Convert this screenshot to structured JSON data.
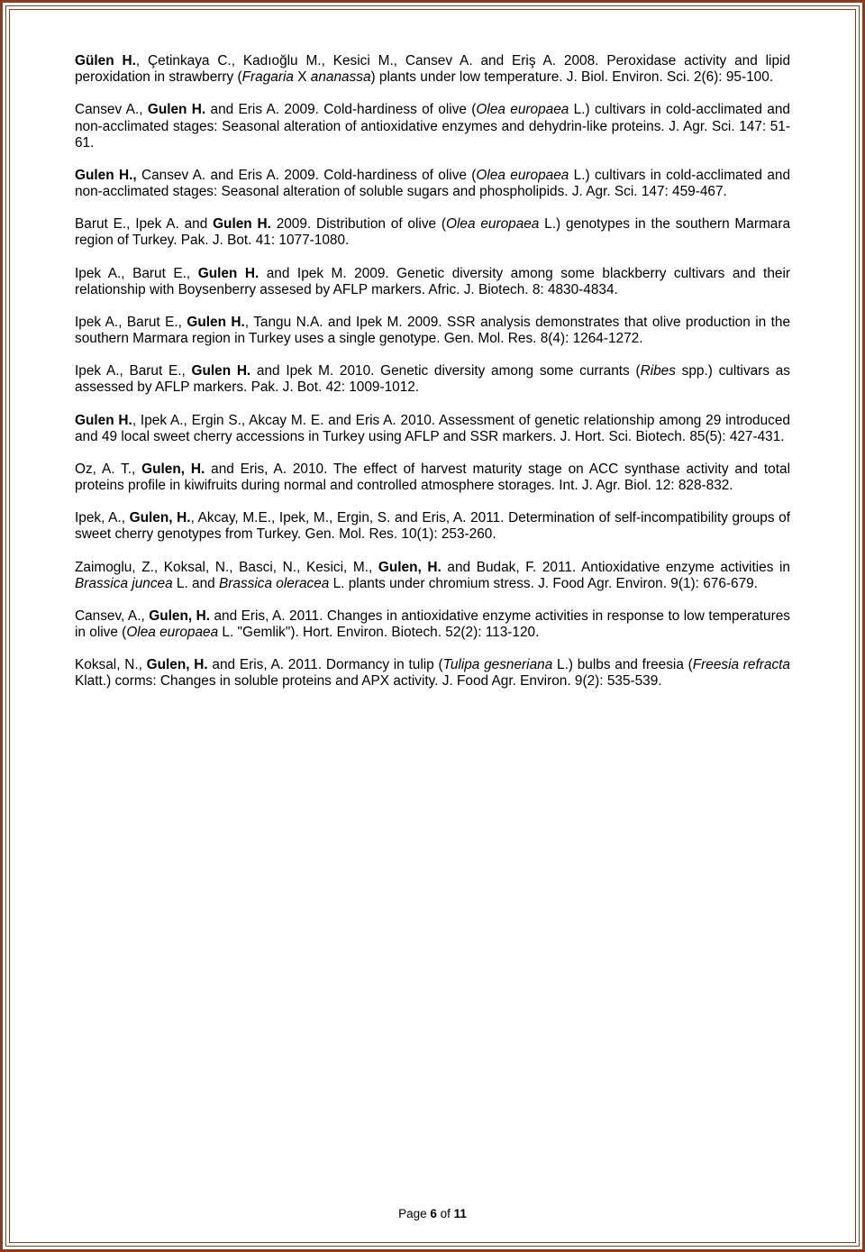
{
  "page": {
    "footer_prefix": "Page ",
    "page_num": "6",
    "footer_mid": " of ",
    "page_total": "11"
  },
  "refs": [
    {
      "a1b": "Gülen H.",
      "a1r": ", Çetinkaya C., Kadıoğlu M., Kesici M., Cansev A. and Eriş A. 2008. Peroxidase activity and lipid peroxidation in strawberry (",
      "i1": "Fragaria",
      "a2r": " X ",
      "i2": "ananassa",
      "a3r": ") plants under low temperature. J. Biol. Environ. Sci. 2(6): 95-100."
    },
    {
      "a1r": "Cansev A., ",
      "a1b": "Gulen H.",
      "a2r": " and Eris A. 2009. Cold-hardiness of olive (",
      "i1": "Olea europaea",
      "a3r": " L.) cultivars in cold-acclimated and non-acclimated stages: Seasonal alteration of antioxidative enzymes and dehydrin-like proteins. J. Agr. Sci. 147: 51-61."
    },
    {
      "a1b": "Gulen H.,",
      "a1r": " Cansev A. and Eris A. 2009. Cold-hardiness of olive (",
      "i1": "Olea europaea",
      "a2r": " L.) cultivars in cold-acclimated and non-acclimated stages: Seasonal alteration of soluble sugars and phospholipids. J. Agr. Sci. 147: 459-467."
    },
    {
      "a1r": "Barut E., Ipek A. and ",
      "a1b": "Gulen H.",
      "a2r": " 2009. Distribution of olive (",
      "i1": "Olea europaea",
      "a3r": " L.) genotypes in the southern Marmara region of Turkey. Pak. J. Bot. 41: 1077-1080."
    },
    {
      "a1r": "Ipek A., Barut E., ",
      "a1b": "Gulen H.",
      "a2r": " and Ipek M. 2009. Genetic diversity among some blackberry cultivars and their relationship with Boysenberry assesed by AFLP markers. Afric. J. Biotech. 8: 4830-4834."
    },
    {
      "a1r": "Ipek A., Barut E., ",
      "a1b": "Gulen H.",
      "a2r": ", Tangu N.A. and Ipek M. 2009. SSR analysis demonstrates that olive production in the southern Marmara region in Turkey uses a single genotype. Gen. Mol. Res. 8(4): 1264-1272."
    },
    {
      "a1r": "Ipek A., Barut E., ",
      "a1b": "Gulen H.",
      "a2r": " and Ipek M. 2010. Genetic diversity among some currants (",
      "i1": "Ribes",
      "a3r": " spp.) cultivars as assessed by AFLP markers. Pak. J. Bot. 42: 1009-1012."
    },
    {
      "a1b": "Gulen H.",
      "a1r": ", Ipek A., Ergin S., Akcay M. E. and Eris A. 2010. Assessment of genetic relationship among 29 introduced and 49 local sweet cherry accessions in Turkey using AFLP and SSR markers. J. Hort. Sci. Biotech. 85(5): 427-431."
    },
    {
      "a1r": "Oz, A. T., ",
      "a1b": "Gulen, H.",
      "a2r": " and Eris, A. 2010. The effect of harvest maturity stage on ACC synthase activity and total proteins profile in kiwifruits during normal and controlled atmosphere storages. Int. J. Agr. Biol. 12: 828-832."
    },
    {
      "a1r": "Ipek, A., ",
      "a1b": "Gulen, H.",
      "a2r": ", Akcay, M.E., Ipek, M., Ergin, S. and Eris, A. 2011. Determination of self-incompatibility groups of sweet cherry genotypes from Turkey. Gen. Mol. Res. 10(1): 253-260."
    },
    {
      "a1r": "Zaimoglu, Z., Koksal, N., Basci, N., Kesici, M., ",
      "a1b": "Gulen, H.",
      "a2r": " and Budak, F. 2011. Antioxidative enzyme activities in ",
      "i1": "Brassica juncea",
      "a3r": " L. and ",
      "i2": "Brassica oleracea",
      "a4r": " L. plants under chromium stress. J. Food Agr. Environ. 9(1): 676-679."
    },
    {
      "a1r": "Cansev, A., ",
      "a1b": "Gulen, H.",
      "a2r": " and Eris, A. 2011. Changes in antioxidative enzyme activities in response to low temperatures in olive (",
      "i1": "Olea europaea",
      "a3r": " L. \"Gemlik\"). Hort. Environ. Biotech. 52(2): 113-120."
    },
    {
      "a1r": "Koksal, N., ",
      "a1b": "Gulen, H.",
      "a2r": " and Eris, A. 2011. Dormancy in tulip (",
      "i1": "Tulipa gesneriana",
      "a3r": " L.) bulbs and freesia (",
      "i2": "Freesia refracta",
      "a4r": " Klatt.) corms: Changes in soluble proteins and APX activity. J. Food Agr. Environ. 9(2): 535-539."
    }
  ]
}
